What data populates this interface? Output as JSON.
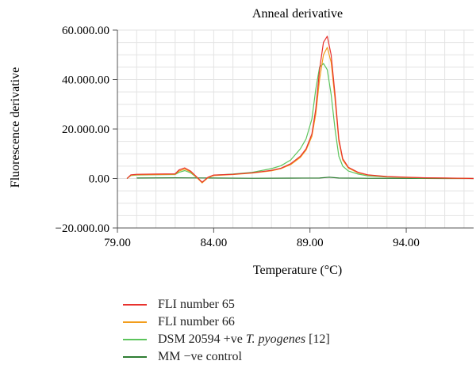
{
  "chart_data": {
    "type": "line",
    "title": "Anneal derivative",
    "xlabel": "Temperature (°C)",
    "ylabel": "Fluorescence derivative",
    "xlim": [
      79,
      97.5
    ],
    "ylim": [
      -20000,
      60000
    ],
    "x_ticks": [
      79,
      84,
      89,
      94
    ],
    "x_tick_labels": [
      "79.00",
      "84.00",
      "89.00",
      "94.00"
    ],
    "y_ticks": [
      -20000,
      0,
      20000,
      40000,
      60000
    ],
    "y_tick_labels": [
      "−20.000.00",
      "0.00",
      "20.000.00",
      "40.000.00",
      "60.000.00"
    ],
    "grid": true,
    "legend_position": "below",
    "series": [
      {
        "name": "FLI number 65",
        "color": "#e8322e",
        "x": [
          79.5,
          79.7,
          80,
          81,
          82,
          82.2,
          82.5,
          82.8,
          83.1,
          83.4,
          83.7,
          84,
          85,
          86,
          87,
          87.5,
          88,
          88.5,
          88.8,
          89.1,
          89.3,
          89.5,
          89.7,
          89.9,
          90.1,
          90.3,
          90.5,
          90.7,
          91,
          91.5,
          92,
          93,
          94,
          95,
          96,
          97,
          97.5
        ],
        "y": [
          0,
          1500,
          1700,
          1800,
          1900,
          3500,
          4300,
          3000,
          800,
          -1500,
          500,
          1400,
          1700,
          2300,
          3300,
          4200,
          6000,
          9000,
          12000,
          18000,
          28000,
          44000,
          55000,
          57500,
          50000,
          34000,
          16000,
          8000,
          4500,
          2500,
          1500,
          800,
          500,
          300,
          200,
          100,
          0
        ]
      },
      {
        "name": "FLI number 66",
        "color": "#f29d1c",
        "x": [
          79.5,
          79.7,
          80,
          81,
          82,
          82.2,
          82.5,
          82.8,
          83.1,
          83.4,
          83.7,
          84,
          85,
          86,
          87,
          87.5,
          88,
          88.5,
          88.8,
          89.1,
          89.3,
          89.5,
          89.7,
          89.9,
          90.1,
          90.3,
          90.5,
          90.7,
          91,
          91.5,
          92,
          93,
          94,
          95,
          96,
          97,
          97.5
        ],
        "y": [
          0,
          1300,
          1500,
          1600,
          1700,
          3000,
          3800,
          2700,
          600,
          -1800,
          300,
          1200,
          1600,
          2200,
          3100,
          4000,
          5600,
          8500,
          11500,
          17000,
          26000,
          40000,
          50000,
          53000,
          47000,
          32000,
          15000,
          7500,
          4200,
          2300,
          1400,
          700,
          450,
          250,
          150,
          80,
          0
        ]
      },
      {
        "name": "DSM 20594 +ve T. pyogenes [12]",
        "name_prefix": "DSM 20594 +ve ",
        "name_italic": "T. pyogenes",
        "name_suffix": " [12]",
        "color": "#5cc45c",
        "x": [
          79.5,
          79.7,
          80,
          81,
          82,
          82.2,
          82.5,
          82.8,
          83.1,
          83.4,
          83.7,
          84,
          85,
          86,
          87,
          87.5,
          88,
          88.5,
          88.8,
          89.1,
          89.3,
          89.5,
          89.7,
          89.9,
          90.1,
          90.3,
          90.5,
          90.7,
          91,
          91.5,
          92,
          93,
          94,
          95,
          96,
          97,
          97.5
        ],
        "y": [
          0,
          1200,
          1400,
          1500,
          1600,
          2500,
          3200,
          2300,
          500,
          -1500,
          300,
          1300,
          1800,
          2500,
          4000,
          5200,
          7500,
          12000,
          16000,
          24000,
          36000,
          45000,
          46500,
          44000,
          34000,
          20000,
          9000,
          5000,
          3000,
          1800,
          1100,
          600,
          400,
          200,
          100,
          50,
          0
        ]
      },
      {
        "name": "MM −ve control",
        "color": "#2e7d32",
        "x": [
          80,
          82,
          84,
          86,
          88,
          89.5,
          90,
          90.5,
          92,
          94,
          96,
          97.5
        ],
        "y": [
          200,
          300,
          200,
          100,
          150,
          200,
          500,
          200,
          100,
          50,
          0,
          0
        ]
      }
    ]
  }
}
